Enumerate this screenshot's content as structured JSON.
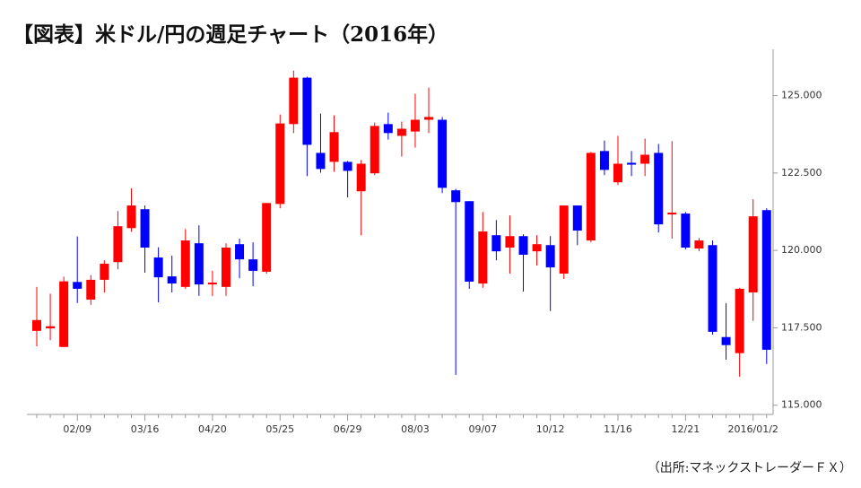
{
  "chart_data": {
    "type": "candlestick",
    "title": "【図表】米ドル/円の週足チャート（2016年）",
    "note": "（出所:マネックストレーダーＦＸ）",
    "categories": [
      null,
      null,
      null,
      "02/09",
      null,
      null,
      null,
      null,
      "03/16",
      null,
      null,
      null,
      null,
      "04/20",
      null,
      null,
      null,
      null,
      "05/25",
      null,
      null,
      null,
      null,
      "06/29",
      null,
      null,
      null,
      null,
      "08/03",
      null,
      null,
      null,
      null,
      "09/07",
      null,
      null,
      null,
      null,
      "10/12",
      null,
      null,
      null,
      null,
      "11/16",
      null,
      null,
      null,
      null,
      "12/21",
      null,
      null,
      null,
      null,
      "2016/01/2",
      null
    ],
    "open": [
      117.4,
      117.48,
      116.88,
      118.98,
      118.41,
      119.05,
      119.62,
      120.72,
      121.33,
      119.77,
      119.16,
      118.82,
      120.23,
      118.9,
      118.82,
      120.2,
      119.71,
      119.31,
      121.5,
      124.08,
      125.58,
      123.15,
      122.86,
      122.86,
      121.91,
      122.49,
      124.08,
      123.7,
      123.84,
      124.22,
      124.22,
      121.94,
      121.59,
      118.93,
      120.49,
      120.09,
      120.46,
      119.97,
      120.17,
      119.25,
      121.45,
      120.32,
      123.21,
      122.2,
      122.83,
      122.8,
      123.15,
      121.16,
      121.19,
      120.06,
      120.17,
      117.2,
      116.68,
      118.64,
      121.3
    ],
    "high": [
      118.82,
      118.6,
      119.15,
      120.45,
      119.2,
      119.68,
      121.27,
      122.0,
      121.45,
      120.1,
      119.83,
      120.69,
      120.81,
      119.34,
      120.23,
      120.38,
      120.26,
      121.53,
      124.39,
      125.81,
      125.61,
      124.42,
      124.36,
      122.89,
      122.92,
      124.13,
      124.45,
      124.16,
      125.06,
      125.26,
      124.31,
      121.99,
      121.59,
      121.24,
      120.98,
      121.13,
      120.52,
      120.49,
      120.46,
      121.45,
      121.45,
      123.18,
      123.55,
      123.7,
      123.21,
      123.61,
      123.44,
      123.53,
      121.24,
      120.4,
      120.32,
      118.29,
      118.79,
      121.65,
      121.36
    ],
    "low": [
      116.9,
      117.1,
      116.88,
      118.3,
      118.24,
      118.64,
      119.39,
      120.6,
      119.28,
      118.32,
      118.64,
      118.76,
      118.53,
      118.53,
      118.53,
      119.1,
      118.84,
      119.25,
      121.36,
      123.79,
      122.4,
      122.51,
      122.54,
      121.71,
      120.49,
      122.43,
      123.58,
      123.03,
      123.32,
      123.79,
      121.85,
      115.98,
      118.76,
      118.79,
      119.68,
      119.25,
      118.67,
      119.51,
      118.04,
      119.08,
      120.17,
      120.26,
      122.43,
      122.11,
      122.4,
      122.4,
      120.58,
      120.38,
      120.03,
      119.97,
      117.28,
      116.47,
      115.92,
      117.72,
      116.33
    ],
    "close": [
      117.75,
      117.55,
      119.0,
      118.76,
      119.05,
      119.57,
      120.78,
      121.45,
      120.09,
      119.13,
      118.93,
      120.32,
      118.9,
      118.96,
      120.09,
      119.71,
      119.34,
      121.53,
      124.1,
      125.58,
      123.41,
      122.63,
      123.82,
      122.57,
      122.8,
      124.02,
      123.79,
      123.93,
      124.22,
      124.31,
      122.02,
      121.56,
      118.99,
      120.61,
      119.97,
      120.46,
      119.86,
      120.2,
      119.45,
      121.45,
      120.64,
      123.15,
      122.6,
      122.8,
      122.77,
      123.09,
      120.84,
      121.22,
      120.09,
      120.32,
      117.37,
      116.94,
      118.76,
      121.1,
      116.79
    ],
    "up_color": "#ff0000",
    "down_color": "#0000ff",
    "ylim": [
      114.7,
      126.35
    ],
    "yticks": [
      {
        "value": 115,
        "label": "115.000"
      },
      {
        "value": 117.5,
        "label": "117.500"
      },
      {
        "value": 120,
        "label": "120.000"
      },
      {
        "value": 122.5,
        "label": "122.500"
      },
      {
        "value": 125,
        "label": "125.000"
      }
    ]
  }
}
